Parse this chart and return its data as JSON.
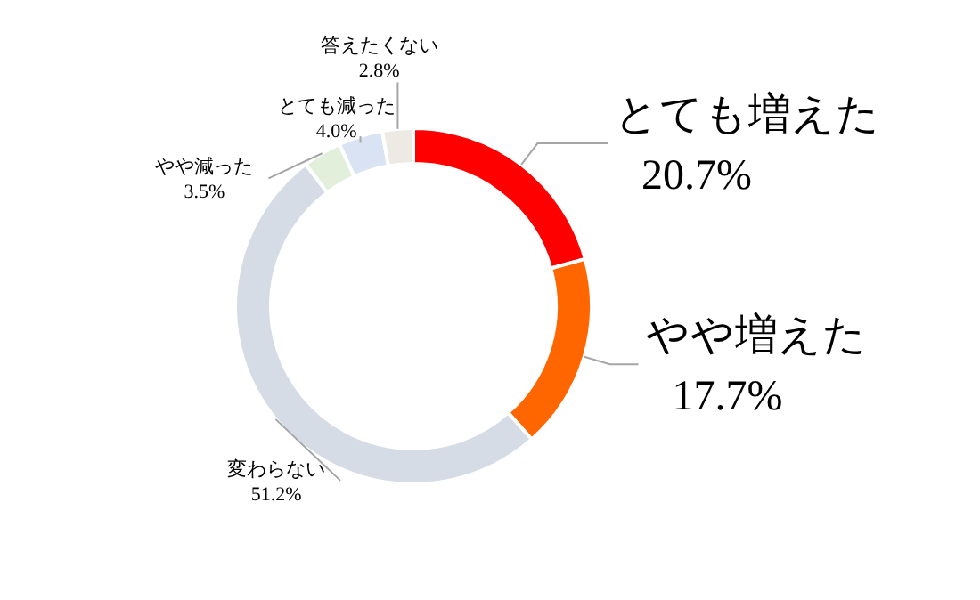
{
  "chart_data": {
    "type": "donut",
    "categories": [
      "とても増えた",
      "やや増えた",
      "変わらない",
      "やや減った",
      "とても減った",
      "答えたくない"
    ],
    "values": [
      20.7,
      17.7,
      51.2,
      3.5,
      4.0,
      2.8
    ],
    "colors": [
      "#ff0000",
      "#ff6600",
      "#d6dce5",
      "#e2efda",
      "#dae3f3",
      "#ede9e3"
    ],
    "value_labels": [
      "20.7%",
      "17.7%",
      "51.2%",
      "3.5%",
      "4.0%",
      "2.8%"
    ]
  }
}
